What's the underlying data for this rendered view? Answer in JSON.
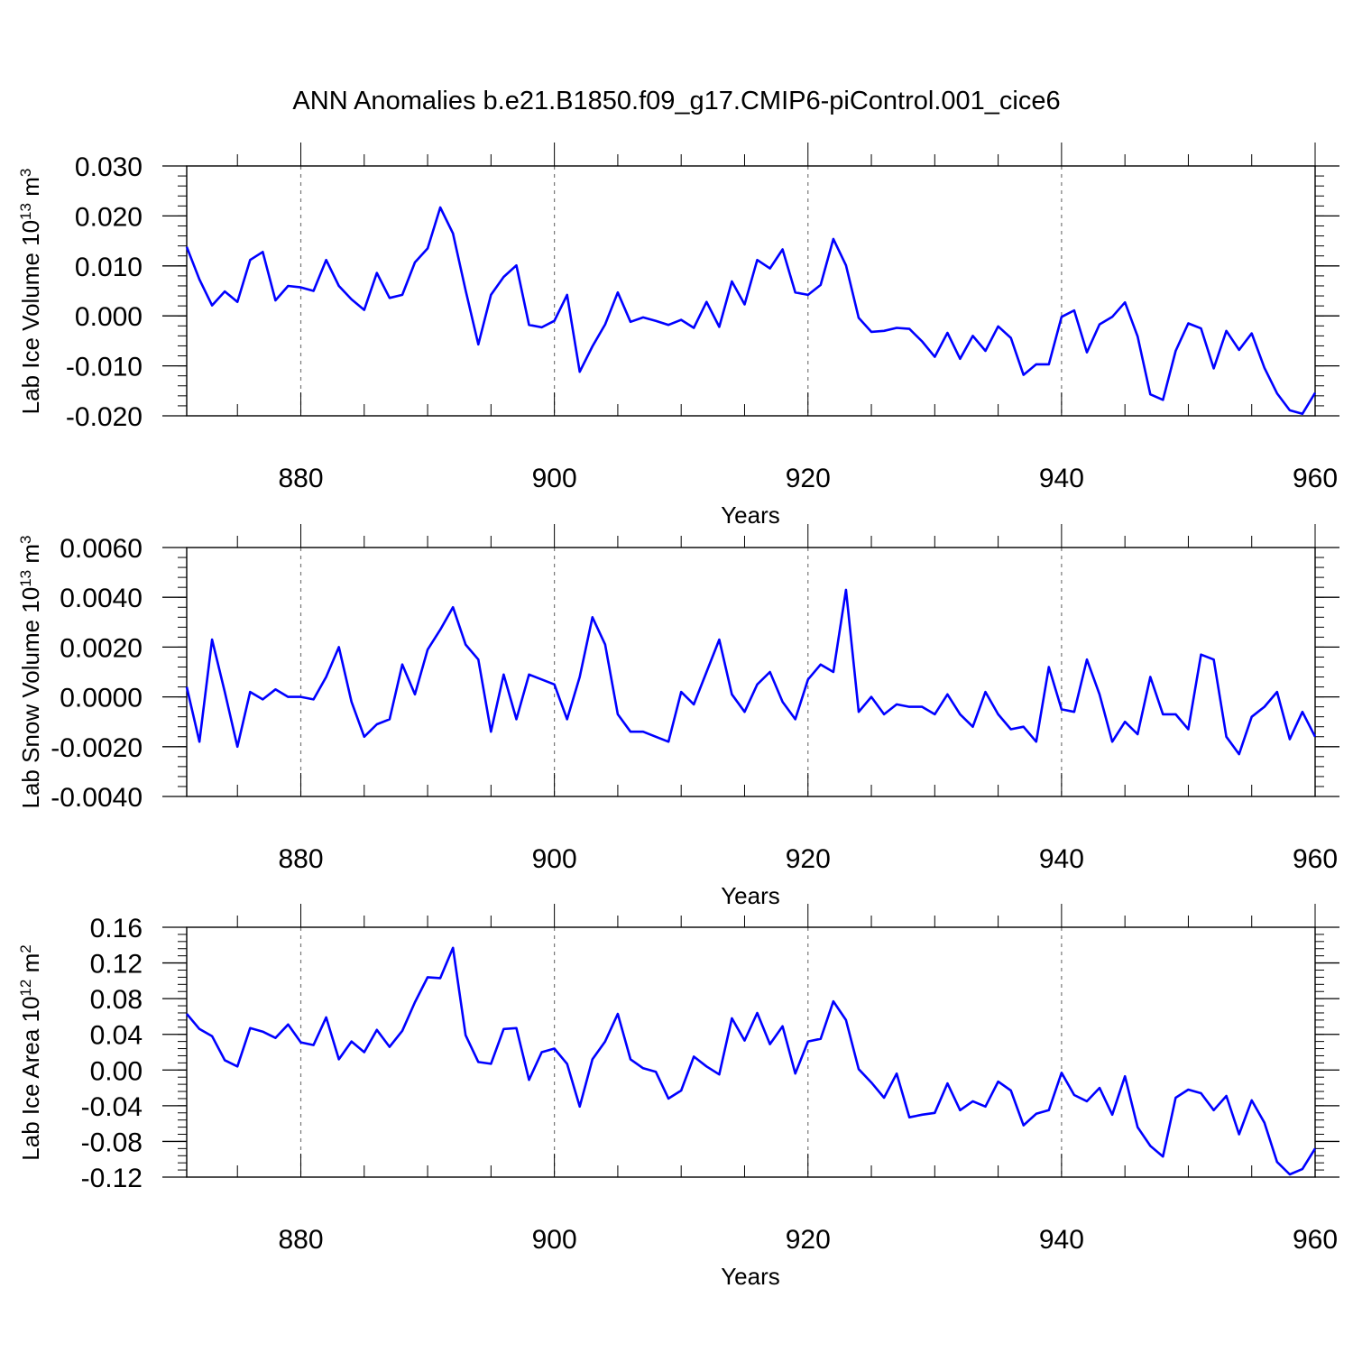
{
  "title": "ANN Anomalies b.e21.B1850.f09_g17.CMIP6-piControl.001_cice6",
  "line_color": "#0000ff",
  "chart_data": [
    {
      "type": "line",
      "ylabel": "Lab Ice Volume 10",
      "ylabel_exp": "13",
      "ylabel_unit": " m",
      "ylabel_unit_exp": "3",
      "xlabel": "Years",
      "xlim": [
        871,
        960
      ],
      "ylim": [
        -0.02,
        0.03
      ],
      "xticks": [
        "880",
        "900",
        "920",
        "940",
        "960"
      ],
      "xtick_values": [
        880,
        900,
        920,
        940,
        960
      ],
      "yticks": [
        "0.030",
        "0.020",
        "0.010",
        "0.000",
        "-0.010",
        "-0.020"
      ],
      "ytick_values": [
        0.03,
        0.02,
        0.01,
        0.0,
        -0.01,
        -0.02
      ],
      "ymin_step": 0.002,
      "grid": "dashed vertical at major x ticks",
      "x_start": 871,
      "values": [
        0.0138,
        0.0073,
        0.0021,
        0.0049,
        0.0028,
        0.0112,
        0.0128,
        0.0031,
        0.006,
        0.0057,
        0.005,
        0.0112,
        0.006,
        0.0033,
        0.0012,
        0.0086,
        0.0036,
        0.0042,
        0.0107,
        0.0135,
        0.0217,
        0.0165,
        0.0051,
        -0.0057,
        0.0042,
        0.0078,
        0.0101,
        -0.0018,
        -0.0023,
        -0.001,
        0.0042,
        -0.0112,
        -0.0061,
        -0.0017,
        0.0047,
        -0.0012,
        -0.0003,
        -0.001,
        -0.0018,
        -0.0008,
        -0.0024,
        0.0028,
        -0.0022,
        0.0069,
        0.0023,
        0.0112,
        0.0095,
        0.0133,
        0.0047,
        0.0042,
        0.0062,
        0.0154,
        0.0101,
        -0.0004,
        -0.0032,
        -0.003,
        -0.0024,
        -0.0026,
        -0.0051,
        -0.0082,
        -0.0034,
        -0.0086,
        -0.004,
        -0.007,
        -0.0021,
        -0.0044,
        -0.0118,
        -0.0097,
        -0.0097,
        -0.0002,
        0.0011,
        -0.0073,
        -0.0017,
        -0.0002,
        0.0027,
        -0.0041,
        -0.0157,
        -0.0168,
        -0.007,
        -0.0015,
        -0.0025,
        -0.0105,
        -0.003,
        -0.0068,
        -0.0035,
        -0.0104,
        -0.0155,
        -0.0189,
        -0.0196,
        -0.0154
      ]
    },
    {
      "type": "line",
      "ylabel": "Lab Snow Volume 10",
      "ylabel_exp": "13",
      "ylabel_unit": " m",
      "ylabel_unit_exp": "3",
      "xlabel": "Years",
      "xlim": [
        871,
        960
      ],
      "ylim": [
        -0.004,
        0.006
      ],
      "xticks": [
        "880",
        "900",
        "920",
        "940",
        "960"
      ],
      "xtick_values": [
        880,
        900,
        920,
        940,
        960
      ],
      "yticks": [
        "0.0060",
        "0.0040",
        "0.0020",
        "0.0000",
        "-0.0020",
        "-0.0040"
      ],
      "ytick_values": [
        0.006,
        0.004,
        0.002,
        0.0,
        -0.002,
        -0.004
      ],
      "ymin_step": 0.0004,
      "grid": "dashed vertical at major x ticks",
      "x_start": 871,
      "values": [
        0.0004,
        -0.0018,
        0.0023,
        0.0002,
        -0.002,
        0.0002,
        -0.0001,
        0.0003,
        0.0,
        0.0,
        -0.0001,
        0.0008,
        0.002,
        -0.0002,
        -0.0016,
        -0.0011,
        -0.0009,
        0.0013,
        0.0001,
        0.0019,
        0.0027,
        0.0036,
        0.0021,
        0.0015,
        -0.0014,
        0.0009,
        -0.0009,
        0.0009,
        0.0007,
        0.0005,
        -0.0009,
        0.0008,
        0.0032,
        0.0021,
        -0.0007,
        -0.0014,
        -0.0014,
        -0.0016,
        -0.0018,
        0.0002,
        -0.0003,
        0.001,
        0.0023,
        0.0001,
        -0.0006,
        0.0005,
        0.001,
        -0.0002,
        -0.0009,
        0.0007,
        0.0013,
        0.001,
        0.0043,
        -0.0006,
        0.0,
        -0.0007,
        -0.0003,
        -0.0004,
        -0.0004,
        -0.0007,
        0.0001,
        -0.0007,
        -0.0012,
        0.0002,
        -0.0007,
        -0.0013,
        -0.0012,
        -0.0018,
        0.0012,
        -0.0005,
        -0.0006,
        0.0015,
        0.0001,
        -0.0018,
        -0.001,
        -0.0015,
        0.0008,
        -0.0007,
        -0.0007,
        -0.0013,
        0.0017,
        0.0015,
        -0.0016,
        -0.0023,
        -0.0008,
        -0.0004,
        0.0002,
        -0.0017,
        -0.0006,
        -0.0016
      ]
    },
    {
      "type": "line",
      "ylabel": "Lab Ice Area 10",
      "ylabel_exp": "12",
      "ylabel_unit": " m",
      "ylabel_unit_exp": "2",
      "xlabel": "Years",
      "xlim": [
        871,
        960
      ],
      "ylim": [
        -0.12,
        0.16
      ],
      "xticks": [
        "880",
        "900",
        "920",
        "940",
        "960"
      ],
      "xtick_values": [
        880,
        900,
        920,
        940,
        960
      ],
      "yticks": [
        "0.16",
        "0.12",
        "0.08",
        "0.04",
        "0.00",
        "-0.04",
        "-0.08",
        "-0.12"
      ],
      "ytick_values": [
        0.16,
        0.12,
        0.08,
        0.04,
        0.0,
        -0.04,
        -0.08,
        -0.12
      ],
      "ymin_step": 0.008,
      "grid": "dashed vertical at major x ticks",
      "x_start": 871,
      "values": [
        0.063,
        0.046,
        0.038,
        0.011,
        0.004,
        0.047,
        0.043,
        0.036,
        0.051,
        0.031,
        0.028,
        0.059,
        0.012,
        0.032,
        0.02,
        0.045,
        0.026,
        0.044,
        0.076,
        0.104,
        0.103,
        0.137,
        0.039,
        0.009,
        0.007,
        0.046,
        0.047,
        -0.011,
        0.02,
        0.024,
        0.007,
        -0.041,
        0.012,
        0.032,
        0.063,
        0.012,
        0.002,
        -0.002,
        -0.032,
        -0.023,
        0.015,
        0.004,
        -0.005,
        0.058,
        0.033,
        0.064,
        0.029,
        0.049,
        -0.004,
        0.032,
        0.035,
        0.077,
        0.056,
        0.001,
        -0.014,
        -0.031,
        -0.004,
        -0.053,
        -0.05,
        -0.048,
        -0.015,
        -0.045,
        -0.035,
        -0.041,
        -0.013,
        -0.023,
        -0.062,
        -0.049,
        -0.045,
        -0.003,
        -0.028,
        -0.035,
        -0.02,
        -0.05,
        -0.007,
        -0.064,
        -0.085,
        -0.097,
        -0.031,
        -0.022,
        -0.026,
        -0.045,
        -0.029,
        -0.072,
        -0.034,
        -0.059,
        -0.103,
        -0.117,
        -0.111,
        -0.088
      ]
    }
  ]
}
